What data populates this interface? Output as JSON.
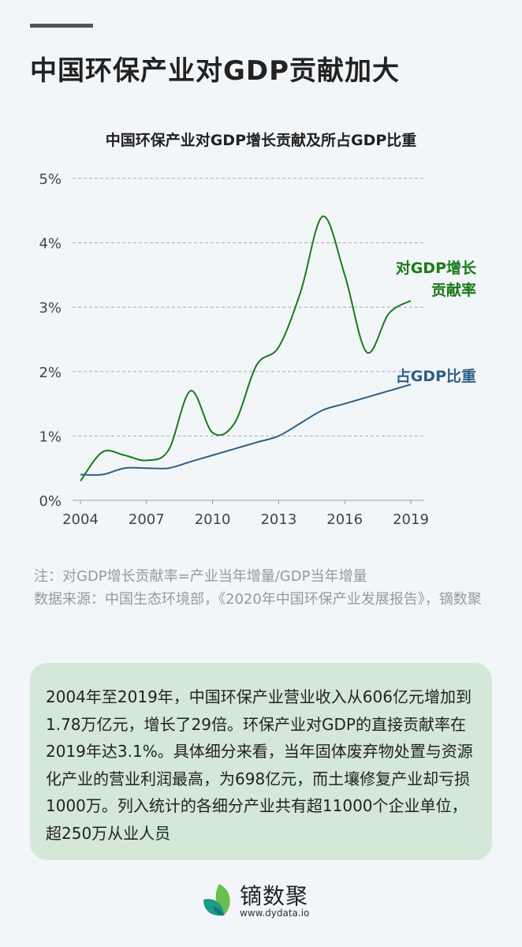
{
  "header": {
    "title": "中国环保产业对GDP贡献加大"
  },
  "chart_data": {
    "type": "line",
    "title": "中国环保产业对GDP增长贡献及所占GDP比重",
    "x": [
      2004,
      2005,
      2006,
      2007,
      2008,
      2009,
      2010,
      2011,
      2012,
      2013,
      2014,
      2015,
      2016,
      2017,
      2018,
      2019
    ],
    "xticks": [
      "2004",
      "2007",
      "2010",
      "2013",
      "2016",
      "2019"
    ],
    "yticks": [
      "0%",
      "1%",
      "2%",
      "3%",
      "4%",
      "5%"
    ],
    "ylim": [
      0,
      5
    ],
    "xlim": [
      2004,
      2019
    ],
    "grid": "horizontal dashed",
    "series": [
      {
        "name": "对GDP增长贡献率",
        "label_lines": [
          "对GDP增长",
          "贡献率"
        ],
        "color": "#1a7a1a",
        "values": [
          0.3,
          0.75,
          0.7,
          0.62,
          0.78,
          1.7,
          1.05,
          1.2,
          2.1,
          2.38,
          3.24,
          4.41,
          3.5,
          2.3,
          2.9,
          3.1
        ]
      },
      {
        "name": "占GDP比重",
        "label_lines": [
          "占GDP比重"
        ],
        "color": "#2e5f86",
        "values": [
          0.4,
          0.4,
          0.5,
          0.5,
          0.5,
          0.6,
          0.7,
          0.8,
          0.9,
          1.0,
          1.2,
          1.4,
          1.5,
          1.6,
          1.7,
          1.8
        ]
      }
    ]
  },
  "notes": {
    "line1": "注：对GDP增长贡献率=产业当年增量/GDP当年增量",
    "line2": "数据来源：中国生态环境部，《2020年中国环保产业发展报告》，镝数聚"
  },
  "summary": "2004年至2019年，中国环保产业营业收入从606亿元增加到1.78万亿元，增长了29倍。环保产业对GDP的直接贡献率在2019年达3.1%。具体细分来看，当年固体废弃物处置与资源化产业的营业利润最高，为698亿元，而土壤修复产业却亏损1000万。列入统计的各细分产业共有超11000个企业单位，超250万从业人员",
  "logo": {
    "name": "镝数聚",
    "url": "www.dydata.io",
    "icon": "leaf-icon"
  }
}
